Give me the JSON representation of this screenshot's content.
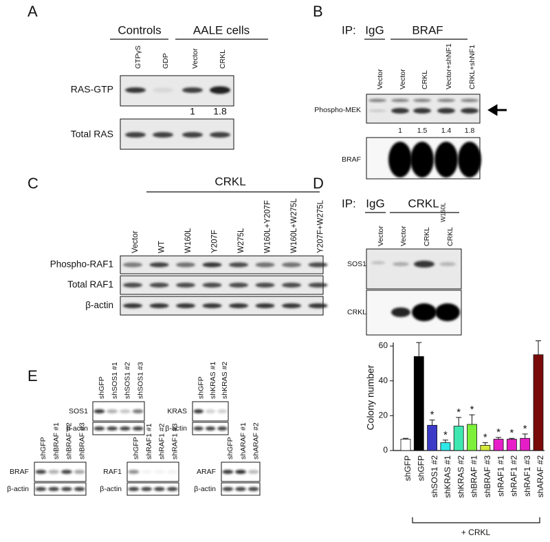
{
  "panel_a": {
    "letter": "A",
    "groups": [
      "Controls",
      "AALE cells"
    ],
    "lanes": [
      "GTPγS",
      "GDP",
      "Vector",
      "CRKL"
    ],
    "rows": [
      "RAS-GTP",
      "Total RAS"
    ],
    "quant": [
      1,
      1.8
    ]
  },
  "panel_b": {
    "letter": "B",
    "ip": "IP:",
    "groups": [
      "IgG",
      "BRAF"
    ],
    "lanes": [
      "Vector",
      "Vector",
      "CRKL",
      "Vector+shNF1",
      "CRKL+shNF1"
    ],
    "rows": [
      "Phospho-MEK",
      "BRAF"
    ],
    "quant": [
      1,
      1.5,
      1.4,
      1.8
    ]
  },
  "panel_c": {
    "letter": "C",
    "group": "CRKL",
    "lanes": [
      "Vector",
      "WT",
      "W160L",
      "Y207F",
      "W275L",
      "W160L+Y207F",
      "W160L+W275L",
      "Y207F+W275L"
    ],
    "rows": [
      "Phospho-RAF1",
      "Total RAF1",
      "β-actin"
    ]
  },
  "panel_d": {
    "letter": "D",
    "ip": "IP:",
    "groups": [
      "IgG",
      "CRKL"
    ],
    "lanes": [
      "Vector",
      "Vector",
      "CRKL",
      "CRKL"
    ],
    "superscript": "W160L",
    "rows": [
      "SOS1",
      "CRKL"
    ]
  },
  "panel_e": {
    "letter": "E",
    "highlight_color": "#e0201b",
    "blots": [
      {
        "lanes": [
          "shGFP",
          "shSOS1 #1",
          "shSOS1 #2",
          "shSOS1 #3"
        ],
        "highlight": [
          2
        ],
        "rows": [
          "SOS1",
          "β-actin"
        ]
      },
      {
        "lanes": [
          "shGFP",
          "shKRAS #1",
          "shKRAS #2"
        ],
        "highlight": [
          1,
          2
        ],
        "rows": [
          "KRAS",
          "β-actin"
        ]
      },
      {
        "lanes": [
          "shGFP",
          "shBRAF #1",
          "shBRAF #2",
          "shBRAF #3"
        ],
        "highlight": [
          1,
          3
        ],
        "rows": [
          "BRAF",
          "β-actin"
        ]
      },
      {
        "lanes": [
          "shGFP",
          "shRAF1 #1",
          "shRAF1 #2",
          "shRAF1 #3"
        ],
        "highlight": [
          1,
          2,
          3
        ],
        "rows": [
          "RAF1",
          "β-actin"
        ]
      },
      {
        "lanes": [
          "shGFP",
          "shARAF #1",
          "shARAF #2"
        ],
        "highlight": [
          2
        ],
        "rows": [
          "ARAF",
          "β-actin"
        ]
      }
    ]
  },
  "chart_data": {
    "type": "bar",
    "y_label": "Colony number",
    "categories": [
      "shGFP",
      "shGFP",
      "shSOS1 #2",
      "shKRAS #1",
      "shKRAS #2",
      "shBRAF #1",
      "shBRAF #3",
      "shRAF1 #1",
      "shRAF1 #2",
      "shRAF1 #3",
      "shARAF #2"
    ],
    "values": [
      6.5,
      54,
      14.5,
      4.5,
      14,
      15,
      3,
      6.5,
      6.5,
      7,
      55
    ],
    "errors": [
      0.5,
      8,
      3,
      1.5,
      5,
      5.5,
      1.5,
      1,
      0.5,
      2.5,
      8
    ],
    "colors": [
      "#ffffff",
      "#000000",
      "#3b3bc8",
      "#2ee8e8",
      "#3fe8b0",
      "#7cf03a",
      "#d4e83a",
      "#e61ec8",
      "#e61ec8",
      "#e61ec8",
      "#7a0a0a"
    ],
    "label_colors": [
      "#111111",
      "#111111",
      "#e0201b",
      "#e0201b",
      "#e0201b",
      "#e0201b",
      "#e0201b",
      "#e0201b",
      "#e0201b",
      "#e0201b",
      "#e0201b"
    ],
    "significance": [
      null,
      null,
      "*",
      "*",
      "*",
      "*",
      "*",
      "*",
      "*",
      "*",
      null
    ],
    "group_label": "+ CRKL",
    "ylim": [
      0,
      62
    ],
    "yticks": [
      0,
      20,
      40,
      60
    ]
  }
}
